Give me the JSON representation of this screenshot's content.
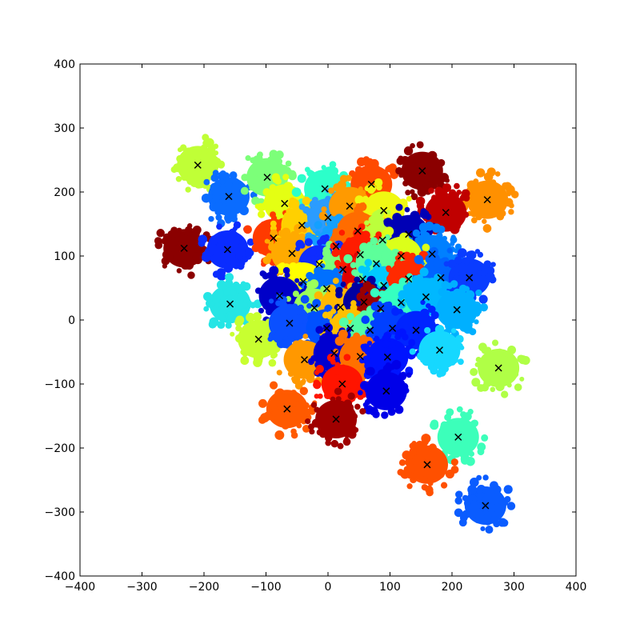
{
  "chart_data": {
    "type": "scatter",
    "title": "",
    "xlabel": "",
    "ylabel": "",
    "xlim": [
      -400,
      400
    ],
    "ylim": [
      -400,
      400
    ],
    "xticks": [
      "−400",
      "−300",
      "−200",
      "−100",
      "0",
      "100",
      "200",
      "300",
      "400"
    ],
    "yticks": [
      "400",
      "300",
      "200",
      "100",
      "0",
      "−100",
      "−200",
      "−300",
      "−400"
    ],
    "grid": false,
    "legend": "none",
    "colormap": "jet",
    "marker_color": "#000000",
    "cluster_centers": [
      {
        "x": -210,
        "y": 242,
        "color": "#c0ff36"
      },
      {
        "x": -160,
        "y": 193,
        "color": "#0a6cff"
      },
      {
        "x": -98,
        "y": 223,
        "color": "#7cff79"
      },
      {
        "x": -70,
        "y": 182,
        "color": "#e4ff13"
      },
      {
        "x": -5,
        "y": 205,
        "color": "#2cffca"
      },
      {
        "x": 70,
        "y": 212,
        "color": "#ff4a00"
      },
      {
        "x": 152,
        "y": 233,
        "color": "#8b0000"
      },
      {
        "x": 257,
        "y": 188,
        "color": "#ff9000"
      },
      {
        "x": -232,
        "y": 112,
        "color": "#8b0000"
      },
      {
        "x": -162,
        "y": 110,
        "color": "#0a2cff"
      },
      {
        "x": -88,
        "y": 128,
        "color": "#ff3a00"
      },
      {
        "x": -42,
        "y": 148,
        "color": "#ffd000"
      },
      {
        "x": 0,
        "y": 160,
        "color": "#2b9cff"
      },
      {
        "x": 35,
        "y": 178,
        "color": "#ff9a00"
      },
      {
        "x": 90,
        "y": 171,
        "color": "#f0f812"
      },
      {
        "x": 190,
        "y": 168,
        "color": "#c00000"
      },
      {
        "x": -58,
        "y": 104,
        "color": "#ffaa00"
      },
      {
        "x": 13,
        "y": 115,
        "color": "#14a0ff"
      },
      {
        "x": 48,
        "y": 139,
        "color": "#ff6c00"
      },
      {
        "x": 88,
        "y": 125,
        "color": "#bcff3c"
      },
      {
        "x": 130,
        "y": 134,
        "color": "#0000b5"
      },
      {
        "x": 168,
        "y": 103,
        "color": "#0080ff"
      },
      {
        "x": -14,
        "y": 87,
        "color": "#0f2cff"
      },
      {
        "x": 24,
        "y": 79,
        "color": "#7aff7d"
      },
      {
        "x": 52,
        "y": 102,
        "color": "#ff1c00"
      },
      {
        "x": 118,
        "y": 100,
        "color": "#dcff1a"
      },
      {
        "x": -40,
        "y": 60,
        "color": "#ffff00"
      },
      {
        "x": -2,
        "y": 49,
        "color": "#0070ff"
      },
      {
        "x": 56,
        "y": 64,
        "color": "#e00000"
      },
      {
        "x": 78,
        "y": 88,
        "color": "#5dff9a"
      },
      {
        "x": 90,
        "y": 54,
        "color": "#00c8ff"
      },
      {
        "x": 130,
        "y": 64,
        "color": "#ff2a00"
      },
      {
        "x": 182,
        "y": 66,
        "color": "#0064ff"
      },
      {
        "x": 228,
        "y": 66,
        "color": "#0a3cff"
      },
      {
        "x": -158,
        "y": 25,
        "color": "#25e5e5"
      },
      {
        "x": -78,
        "y": 38,
        "color": "#0000c8"
      },
      {
        "x": -22,
        "y": 19,
        "color": "#9cff5a"
      },
      {
        "x": 20,
        "y": 20,
        "color": "#ffb800"
      },
      {
        "x": 58,
        "y": 28,
        "color": "#0000a0"
      },
      {
        "x": 85,
        "y": 18,
        "color": "#9a0000"
      },
      {
        "x": 118,
        "y": 27,
        "color": "#36ffc0"
      },
      {
        "x": 158,
        "y": 36,
        "color": "#00b8ff"
      },
      {
        "x": 208,
        "y": 16,
        "color": "#00b0ff"
      },
      {
        "x": -112,
        "y": -30,
        "color": "#c8ff30"
      },
      {
        "x": -62,
        "y": -5,
        "color": "#0a50ff"
      },
      {
        "x": -2,
        "y": -13,
        "color": "#0050ff"
      },
      {
        "x": 36,
        "y": -13,
        "color": "#ffc000"
      },
      {
        "x": 68,
        "y": -16,
        "color": "#53ffa6"
      },
      {
        "x": 104,
        "y": -13,
        "color": "#0040ff"
      },
      {
        "x": 142,
        "y": -16,
        "color": "#0024ff"
      },
      {
        "x": -38,
        "y": -62,
        "color": "#ff9800"
      },
      {
        "x": 10,
        "y": -52,
        "color": "#0000d0"
      },
      {
        "x": 52,
        "y": -57,
        "color": "#ff7000"
      },
      {
        "x": 96,
        "y": -58,
        "color": "#0014ff"
      },
      {
        "x": 180,
        "y": -47,
        "color": "#16d8ff"
      },
      {
        "x": 275,
        "y": -75,
        "color": "#b0ff46"
      },
      {
        "x": 23,
        "y": -100,
        "color": "#ff1400"
      },
      {
        "x": 94,
        "y": -111,
        "color": "#0000e8"
      },
      {
        "x": -66,
        "y": -139,
        "color": "#ff5a00"
      },
      {
        "x": 13,
        "y": -155,
        "color": "#a00000"
      },
      {
        "x": 210,
        "y": -183,
        "color": "#3cffba"
      },
      {
        "x": 160,
        "y": -226,
        "color": "#ff5000"
      },
      {
        "x": 254,
        "y": -290,
        "color": "#0a5cff"
      }
    ]
  }
}
